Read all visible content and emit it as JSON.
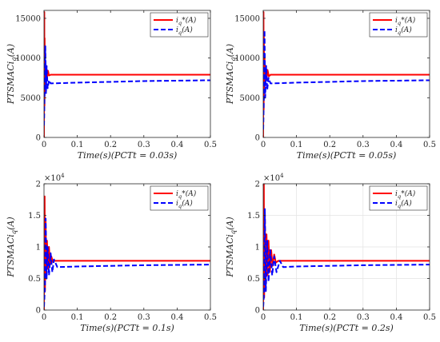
{
  "chart_data": [
    {
      "type": "line",
      "panel": "top-left",
      "xlabel": "Time(s)(PCTt = 0.03s)",
      "ylabel": "PTSMACi_q(A)",
      "xlim": [
        0,
        0.5
      ],
      "ylim": [
        0,
        16000
      ],
      "x_ticks": [
        "0",
        "0.1",
        "0.2",
        "0.3",
        "0.4",
        "0.5"
      ],
      "y_ticks": [
        "0",
        "5000",
        "10000",
        "15000"
      ],
      "y_exponent": "",
      "grid": false,
      "legend": "top-right",
      "series": [
        {
          "name": "i_q*(A)",
          "color": "#ff0000",
          "style": "solid",
          "x": [
            0,
            0.001,
            0.0015,
            0.002,
            0.003,
            0.004,
            0.005,
            0.007,
            0.009,
            0.012,
            0.015,
            0.02,
            0.5
          ],
          "y": [
            0,
            15800,
            4000,
            12500,
            6000,
            9500,
            7000,
            8800,
            7500,
            8400,
            7800,
            7900,
            7900
          ]
        },
        {
          "name": "i_q(A)",
          "color": "#0000ff",
          "style": "dashed",
          "x": [
            0,
            0.002,
            0.004,
            0.006,
            0.008,
            0.011,
            0.015,
            0.02,
            0.1,
            0.2,
            0.3,
            0.4,
            0.5
          ],
          "y": [
            1500,
            6000,
            11500,
            5500,
            9000,
            6200,
            7200,
            6800,
            6900,
            7000,
            7100,
            7150,
            7200
          ]
        }
      ]
    },
    {
      "type": "line",
      "panel": "top-right",
      "xlabel": "Time(s)(PCTt = 0.05s)",
      "ylabel": "PTSMACi_q(A)",
      "xlim": [
        0,
        0.5
      ],
      "ylim": [
        0,
        16000
      ],
      "x_ticks": [
        "0",
        "0.1",
        "0.2",
        "0.3",
        "0.4",
        "0.5"
      ],
      "y_ticks": [
        "0",
        "5000",
        "10000",
        "15000"
      ],
      "y_exponent": "",
      "grid": false,
      "legend": "top-right",
      "series": [
        {
          "name": "i_q*(A)",
          "color": "#ff0000",
          "style": "solid",
          "x": [
            0,
            0.001,
            0.0015,
            0.002,
            0.003,
            0.004,
            0.006,
            0.008,
            0.01,
            0.013,
            0.017,
            0.022,
            0.5
          ],
          "y": [
            0,
            15800,
            3500,
            13000,
            6000,
            10500,
            6500,
            9000,
            7200,
            8500,
            7700,
            7900,
            7900
          ]
        },
        {
          "name": "i_q(A)",
          "color": "#0000ff",
          "style": "dashed",
          "x": [
            0,
            0.002,
            0.004,
            0.006,
            0.009,
            0.012,
            0.016,
            0.022,
            0.1,
            0.2,
            0.3,
            0.4,
            0.5
          ],
          "y": [
            1000,
            5000,
            13500,
            5000,
            9000,
            6000,
            7500,
            6800,
            6900,
            7000,
            7100,
            7150,
            7200
          ]
        }
      ]
    },
    {
      "type": "line",
      "panel": "bottom-left",
      "xlabel": "Time(s)(PCTt = 0.1s)",
      "ylabel": "PTSMACi_q(A)",
      "xlim": [
        0,
        0.5
      ],
      "ylim": [
        0,
        2
      ],
      "x_ticks": [
        "0",
        "0.1",
        "0.2",
        "0.3",
        "0.4",
        "0.5"
      ],
      "y_ticks": [
        "0",
        "0.5",
        "1",
        "1.5",
        "2"
      ],
      "y_exponent": "×10^4",
      "grid": false,
      "legend": "top-right",
      "series": [
        {
          "name": "i_q*(A)",
          "color": "#ff0000",
          "style": "solid",
          "x": [
            0,
            0.002,
            0.003,
            0.005,
            0.007,
            0.009,
            0.012,
            0.015,
            0.018,
            0.022,
            0.027,
            0.03,
            0.5
          ],
          "y": [
            0,
            1.8,
            0.3,
            1.4,
            0.5,
            1.1,
            0.65,
            1.0,
            0.72,
            0.85,
            0.76,
            0.78,
            0.78
          ]
        },
        {
          "name": "i_q(A)",
          "color": "#0000ff",
          "style": "dashed",
          "x": [
            0,
            0.003,
            0.005,
            0.008,
            0.011,
            0.015,
            0.02,
            0.025,
            0.03,
            0.04,
            0.1,
            0.3,
            0.5
          ],
          "y": [
            0.05,
            0.4,
            1.45,
            0.5,
            1.0,
            0.55,
            0.9,
            0.6,
            0.8,
            0.68,
            0.69,
            0.71,
            0.72
          ]
        }
      ]
    },
    {
      "type": "line",
      "panel": "bottom-right",
      "xlabel": "Time(s)(PCTt = 0.2s)",
      "ylabel": "PTSMACi_q(A)",
      "xlim": [
        0,
        0.5
      ],
      "ylim": [
        0,
        2
      ],
      "x_ticks": [
        "0",
        "0.1",
        "0.2",
        "0.3",
        "0.4",
        "0.5"
      ],
      "y_ticks": [
        "0",
        "0.5",
        "1",
        "1.5",
        "2"
      ],
      "y_exponent": "×10^4",
      "grid": true,
      "legend": "top-right",
      "series": [
        {
          "name": "i_q*(A)",
          "color": "#ff0000",
          "style": "solid",
          "x": [
            0,
            0.002,
            0.003,
            0.005,
            0.007,
            0.01,
            0.013,
            0.016,
            0.02,
            0.024,
            0.028,
            0.033,
            0.038,
            0.045,
            0.5
          ],
          "y": [
            0,
            2.0,
            0.2,
            1.5,
            0.4,
            1.2,
            0.55,
            1.1,
            0.6,
            0.95,
            0.7,
            0.88,
            0.75,
            0.78,
            0.78
          ]
        },
        {
          "name": "i_q(A)",
          "color": "#0000ff",
          "style": "dashed",
          "x": [
            0,
            0.003,
            0.005,
            0.008,
            0.012,
            0.016,
            0.021,
            0.027,
            0.033,
            0.04,
            0.05,
            0.06,
            0.1,
            0.3,
            0.5
          ],
          "y": [
            0.05,
            0.3,
            1.6,
            0.3,
            1.1,
            0.45,
            0.95,
            0.55,
            0.85,
            0.6,
            0.78,
            0.68,
            0.69,
            0.71,
            0.72
          ]
        }
      ]
    }
  ]
}
